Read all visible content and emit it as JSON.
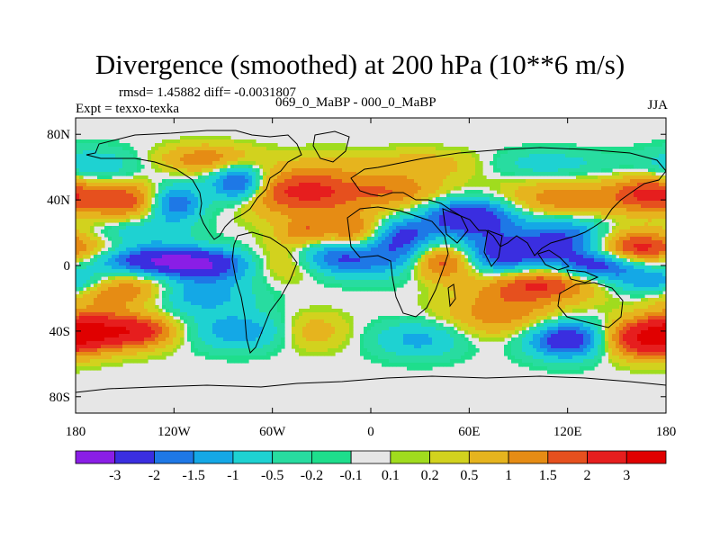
{
  "header": {
    "title": "Divergence (smoothed) at 200 hPa (10**6 m/s)",
    "stats": "rmsd= 1.45882 diff= -0.0031807",
    "expt": "Expt = texxo-texka",
    "diff_name": "069_0_MaBP - 000_0_MaBP",
    "season": "JJA"
  },
  "chart_data": {
    "type": "heatmap",
    "title": "Divergence (smoothed) at 200 hPa (10**6 m/s)",
    "xlabel": "",
    "ylabel": "",
    "units": "10**6 m/s",
    "xlim": [
      -180,
      180
    ],
    "ylim": [
      -90,
      90
    ],
    "x_ticks": [
      {
        "value": -180,
        "label": "180"
      },
      {
        "value": -120,
        "label": "120W"
      },
      {
        "value": -60,
        "label": "60W"
      },
      {
        "value": 0,
        "label": "0"
      },
      {
        "value": 60,
        "label": "60E"
      },
      {
        "value": 120,
        "label": "120E"
      },
      {
        "value": 180,
        "label": "180"
      }
    ],
    "y_ticks": [
      {
        "value": 80,
        "label": "80N"
      },
      {
        "value": 40,
        "label": "40N"
      },
      {
        "value": 0,
        "label": "0"
      },
      {
        "value": -40,
        "label": "40S"
      },
      {
        "value": -80,
        "label": "80S"
      }
    ],
    "colorbar": {
      "labels": [
        "-3",
        "-2",
        "-1.5",
        "-1",
        "-0.5",
        "-0.2",
        "-0.1",
        "0.1",
        "0.2",
        "0.5",
        "1",
        "1.5",
        "2",
        "3"
      ],
      "colors": [
        "#8a1ee6",
        "#3a2ee0",
        "#1e78e6",
        "#14a8e6",
        "#1ed2d2",
        "#28dca0",
        "#1ede8c",
        "#e6e6e6",
        "#a0dc1e",
        "#d2d21e",
        "#e6b41e",
        "#e68c14",
        "#e6501e",
        "#e61e1e",
        "#e00000"
      ]
    },
    "grid": false,
    "legend": "bottom"
  }
}
